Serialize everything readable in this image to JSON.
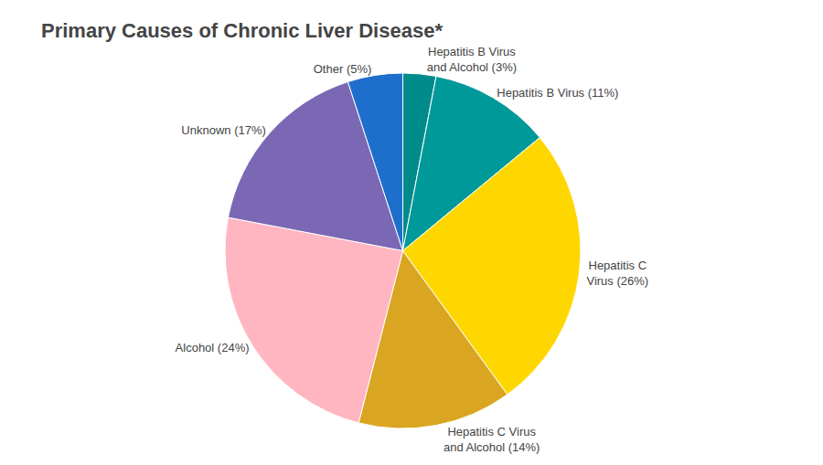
{
  "chart_data": {
    "type": "pie",
    "title": "Primary Causes of Chronic Liver Disease*",
    "categories": [
      "Hepatitis B Virus\nand Alcohol (3%)",
      "Hepatitis B Virus (11%)",
      "Hepatitis C\nVirus (26%)",
      "Hepatitis C Virus\nand Alcohol (14%)",
      "Alcohol (24%)",
      "Unknown (17%)",
      "Other (5%)"
    ],
    "values": [
      3,
      11,
      26,
      14,
      24,
      17,
      5
    ],
    "colors": [
      "#008B8B",
      "#009999",
      "#FFD700",
      "#DAA520",
      "#FFB6C1",
      "#7B68B5",
      "#1E6FCC"
    ],
    "legend": false
  }
}
